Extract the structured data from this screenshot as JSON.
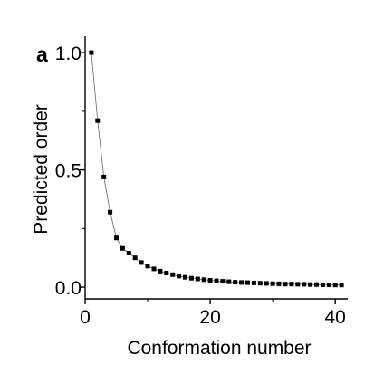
{
  "chart_data": {
    "type": "scatter",
    "panel_label": "a",
    "xlabel": "Conformation number",
    "ylabel": "Predicted order",
    "xlim": [
      0,
      42
    ],
    "ylim": [
      -0.05,
      1.07
    ],
    "x_ticks": [
      0,
      20,
      40
    ],
    "x_tick_labels": [
      "0",
      "20",
      "40"
    ],
    "y_ticks": [
      0.0,
      0.5,
      1.0
    ],
    "y_tick_labels": [
      "0.0",
      "0.5",
      "1.0"
    ],
    "grid": false,
    "connecting_line": true,
    "x": [
      1,
      2,
      3,
      4,
      5,
      6,
      7,
      8,
      9,
      10,
      11,
      12,
      13,
      14,
      15,
      16,
      17,
      18,
      19,
      20,
      21,
      22,
      23,
      24,
      25,
      26,
      27,
      28,
      29,
      30,
      31,
      32,
      33,
      34,
      35,
      36,
      37,
      38,
      39,
      40,
      41
    ],
    "y": [
      1.0,
      0.71,
      0.47,
      0.32,
      0.21,
      0.165,
      0.145,
      0.125,
      0.105,
      0.09,
      0.078,
      0.068,
      0.06,
      0.053,
      0.047,
      0.042,
      0.038,
      0.035,
      0.032,
      0.029,
      0.027,
      0.025,
      0.023,
      0.021,
      0.02,
      0.019,
      0.018,
      0.017,
      0.016,
      0.015,
      0.014,
      0.013,
      0.013,
      0.012,
      0.012,
      0.011,
      0.011,
      0.01,
      0.01,
      0.009,
      0.009
    ]
  }
}
